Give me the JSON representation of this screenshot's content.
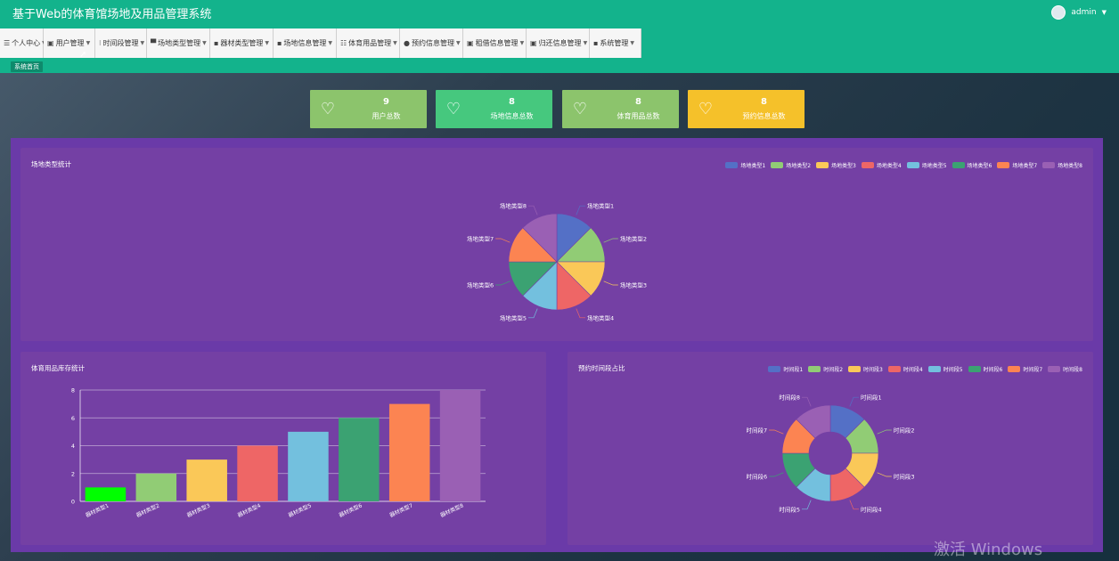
{
  "header": {
    "title": "基于Web的体育馆场地及用品管理系统",
    "user": "admin"
  },
  "menu": [
    {
      "label": "个人中心",
      "icon": "☰"
    },
    {
      "label": "用户管理",
      "icon": "▣"
    },
    {
      "label": "时间段管理",
      "icon": "⁝"
    },
    {
      "label": "场地类型管理",
      "icon": "▀"
    },
    {
      "label": "器材类型管理",
      "icon": "▪"
    },
    {
      "label": "场地信息管理",
      "icon": "▪"
    },
    {
      "label": "体育用品管理",
      "icon": "☷"
    },
    {
      "label": "预约信息管理",
      "icon": "●"
    },
    {
      "label": "租借信息管理",
      "icon": "▣"
    },
    {
      "label": "归还信息管理",
      "icon": "▣"
    },
    {
      "label": "系统管理",
      "icon": "▪"
    }
  ],
  "breadcrumb": "系统首页",
  "stats": [
    {
      "value": "9",
      "label": "用户总数",
      "color": "#8cc46c"
    },
    {
      "value": "8",
      "label": "场地信息总数",
      "color": "#46c87e"
    },
    {
      "value": "8",
      "label": "体育用品总数",
      "color": "#8cc46c"
    },
    {
      "value": "8",
      "label": "预约信息总数",
      "color": "#f5c12a"
    }
  ],
  "panels": {
    "pie_title": "场地类型统计",
    "bar_title": "体育用品库存统计",
    "donut_title": "预约时间段占比"
  },
  "watermark": "激活 Windows",
  "chart_data": [
    {
      "type": "pie",
      "title": "场地类型统计",
      "categories": [
        "场地类型1",
        "场地类型2",
        "场地类型3",
        "场地类型4",
        "场地类型5",
        "场地类型6",
        "场地类型7",
        "场地类型8"
      ],
      "values": [
        1,
        1,
        1,
        1,
        1,
        1,
        1,
        1
      ],
      "colors": [
        "#5470c6",
        "#91cc75",
        "#fac858",
        "#ee6666",
        "#73c0de",
        "#3ba272",
        "#fc8452",
        "#9a60b4"
      ],
      "legend": "top-right"
    },
    {
      "type": "bar",
      "title": "体育用品库存统计",
      "categories": [
        "器材类型1",
        "器材类型2",
        "器材类型3",
        "器材类型4",
        "器材类型5",
        "器材类型6",
        "器材类型7",
        "器材类型8"
      ],
      "values": [
        1,
        2,
        3,
        4,
        5,
        6,
        7,
        8
      ],
      "colors": [
        "#00ff00",
        "#91cc75",
        "#fac858",
        "#ee6666",
        "#73c0de",
        "#3ba272",
        "#fc8452",
        "#9a60b4"
      ],
      "yticks": [
        "0",
        "2",
        "4",
        "6",
        "8"
      ],
      "ylim": [
        0,
        8
      ],
      "grid": true
    },
    {
      "type": "pie",
      "title": "预约时间段占比",
      "categories": [
        "时间段1",
        "时间段2",
        "时间段3",
        "时间段4",
        "时间段5",
        "时间段6",
        "时间段7",
        "时间段8"
      ],
      "values": [
        1,
        1,
        1,
        1,
        1,
        1,
        1,
        1
      ],
      "colors": [
        "#5470c6",
        "#91cc75",
        "#fac858",
        "#ee6666",
        "#73c0de",
        "#3ba272",
        "#fc8452",
        "#9a60b4"
      ],
      "donut": true,
      "legend": "top-right"
    }
  ]
}
